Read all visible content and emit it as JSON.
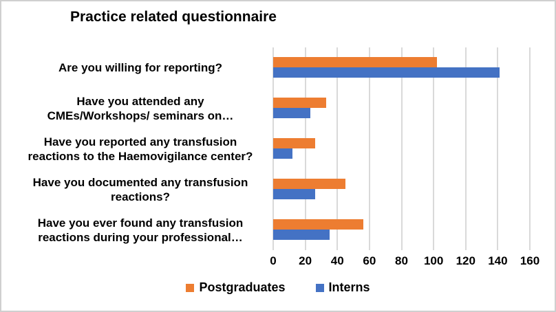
{
  "figure": {
    "background": "#FFFFFF",
    "border_color": "#CFCFCF"
  },
  "chart_data": {
    "type": "bar",
    "orientation": "horizontal",
    "title": "Practice related questionnaire",
    "categories": [
      "Are you willing for reporting?",
      "Have you attended any\nCMEs/Workshops/ seminars on…",
      "Have you reported any transfusion\nreactions to the Haemovigilance center?",
      "Have you documented any transfusion\nreactions?",
      "Have you ever found any transfusion\nreactions during your professional…"
    ],
    "series": [
      {
        "name": "Postgraduates",
        "color": "#ED7D31",
        "values": [
          102,
          33,
          26,
          45,
          56
        ]
      },
      {
        "name": "Interns",
        "color": "#4472C4",
        "values": [
          141,
          23,
          12,
          26,
          35
        ]
      }
    ],
    "xlabel": "",
    "ylabel": "",
    "xlim": [
      0,
      160
    ],
    "xticks": [
      0,
      20,
      40,
      60,
      80,
      100,
      120,
      140,
      160
    ],
    "grid": true,
    "gridline_color": "#D9D9D9",
    "text_color": "#000000",
    "legend_position": "bottom"
  }
}
